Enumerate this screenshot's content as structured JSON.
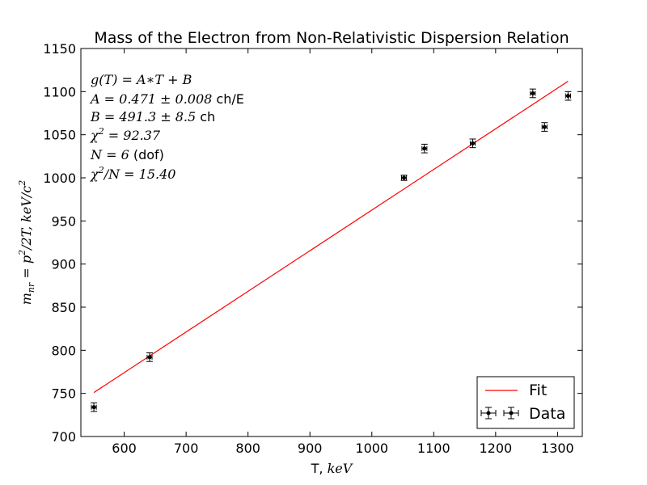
{
  "chart_data": {
    "type": "scatter",
    "title": "Mass of the Electron from Non-Relativistic Dispersion Relation",
    "xlabel": "T, keV",
    "ylabel": "m_nr = p^2/2T, keV/c^2",
    "xlim": [
      530,
      1340
    ],
    "ylim": [
      700,
      1150
    ],
    "xticks": [
      600,
      700,
      800,
      900,
      1000,
      1100,
      1200,
      1300
    ],
    "yticks": [
      700,
      750,
      800,
      850,
      900,
      950,
      1000,
      1050,
      1100,
      1150
    ],
    "grid": false,
    "legend_position": "lower-right",
    "series": [
      {
        "name": "Data",
        "kind": "errorbar",
        "color": "#000000",
        "x": [
          551,
          641,
          1052,
          1085,
          1163,
          1260,
          1279,
          1317
        ],
        "y": [
          734,
          792,
          1000,
          1034,
          1040,
          1098,
          1059,
          1095
        ],
        "yerr": [
          5,
          5,
          3,
          5,
          5,
          5,
          5,
          5
        ],
        "xerr": [
          4,
          4,
          4,
          4,
          4,
          4,
          4,
          4
        ]
      },
      {
        "name": "Fit",
        "kind": "line",
        "color": "#ff0000",
        "x": [
          551,
          1317
        ],
        "y": [
          751,
          1112
        ]
      }
    ],
    "annotations": [
      "g(T) = A*T + B",
      "A = 0.471 ± 0.008 ch/E",
      "B = 491.3 ± 8.5 ch",
      "χ² = 92.37",
      "N = 6 (dof)",
      "χ²/N = 15.40"
    ]
  }
}
